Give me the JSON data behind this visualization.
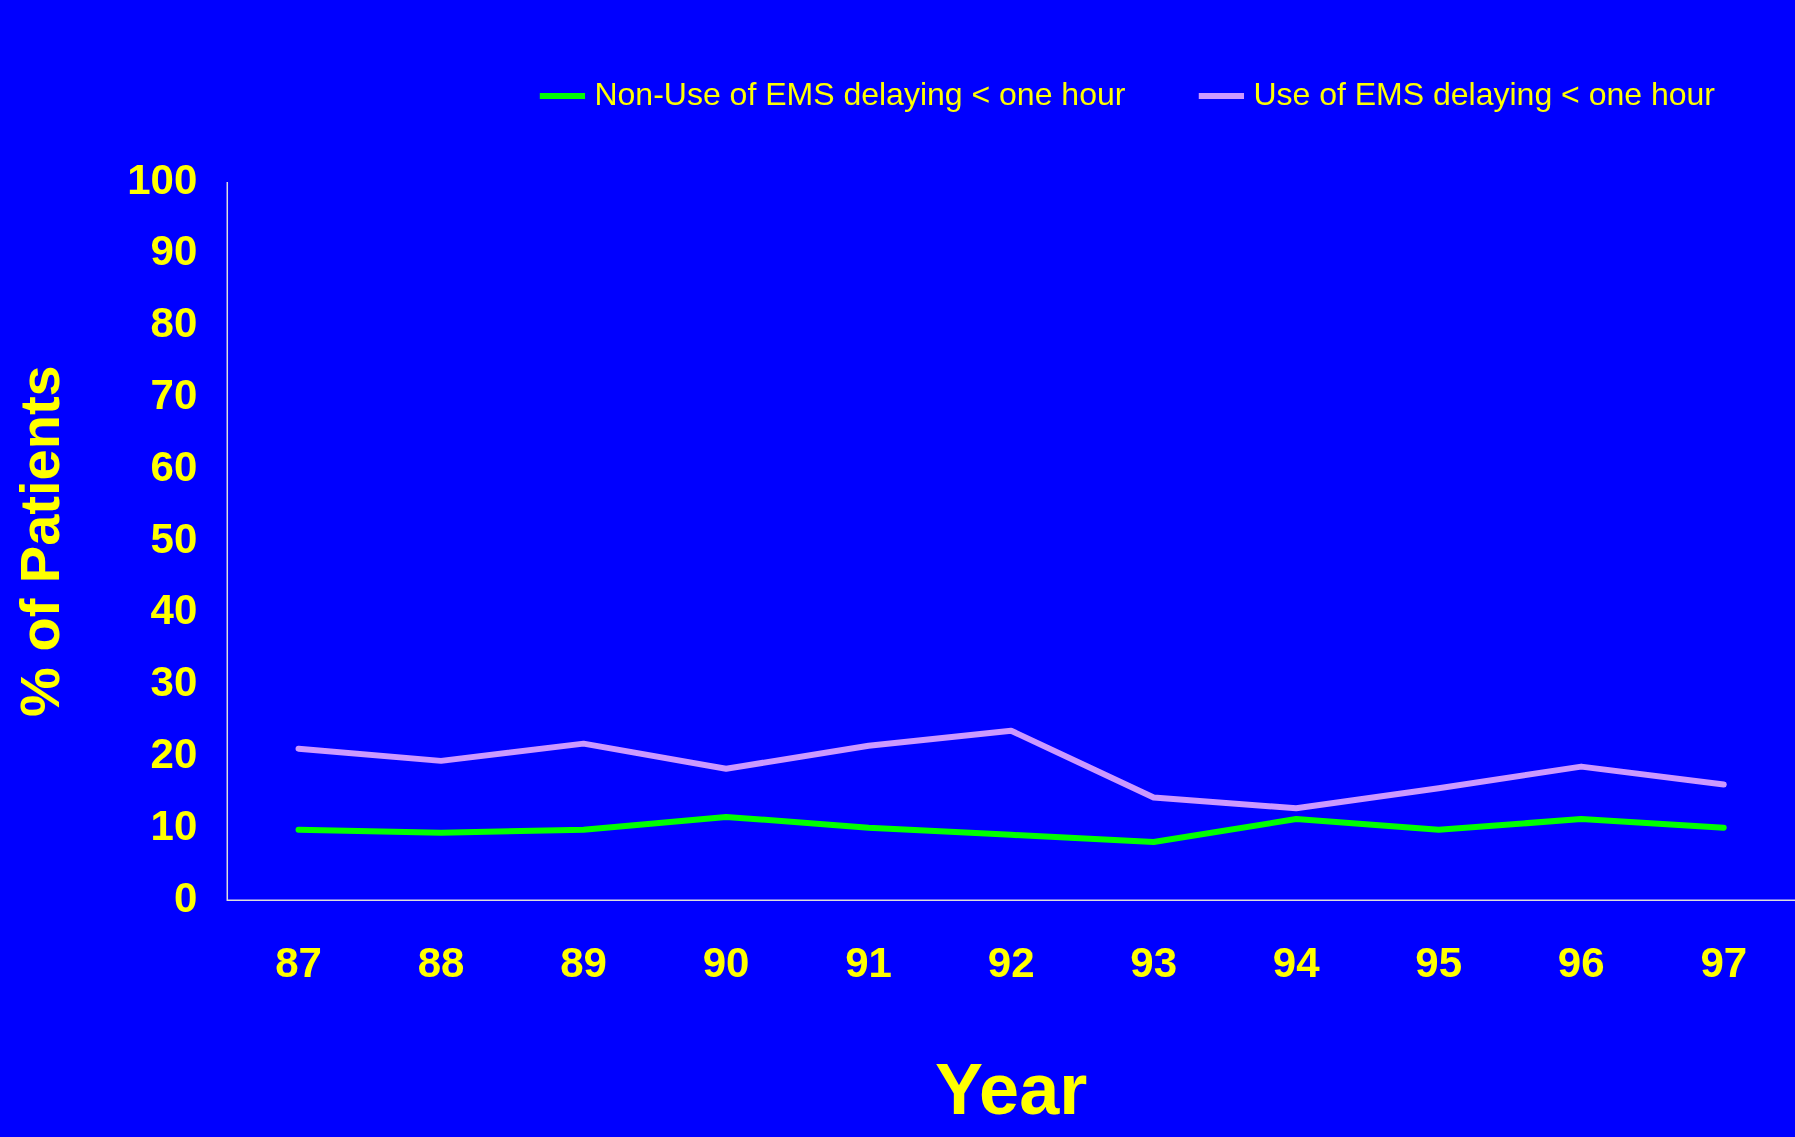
{
  "chart_data": {
    "type": "line",
    "xlabel": "Year",
    "ylabel": "% of Patients",
    "categories": [
      "87",
      "88",
      "89",
      "90",
      "91",
      "92",
      "93",
      "94",
      "95",
      "96",
      "97"
    ],
    "series": [
      {
        "name": "Non-Use of EMS delaying < one hour",
        "color": "#00ff00",
        "values": [
          9.8,
          9.4,
          9.8,
          11.6,
          10.1,
          9.1,
          8.1,
          11.3,
          9.8,
          11.3,
          10.1
        ]
      },
      {
        "name": "Use of EMS delaying < one hour",
        "color": "#cc99ff",
        "values": [
          21.1,
          19.4,
          21.8,
          18.3,
          21.5,
          23.6,
          14.3,
          12.8,
          15.6,
          18.6,
          16.1
        ]
      }
    ],
    "ylim": [
      0,
      100
    ],
    "yticks": [
      0,
      10,
      20,
      30,
      40,
      50,
      60,
      70,
      80,
      90,
      100
    ],
    "grid": false,
    "legend": "top",
    "marker": "none",
    "line_style": "solid"
  }
}
